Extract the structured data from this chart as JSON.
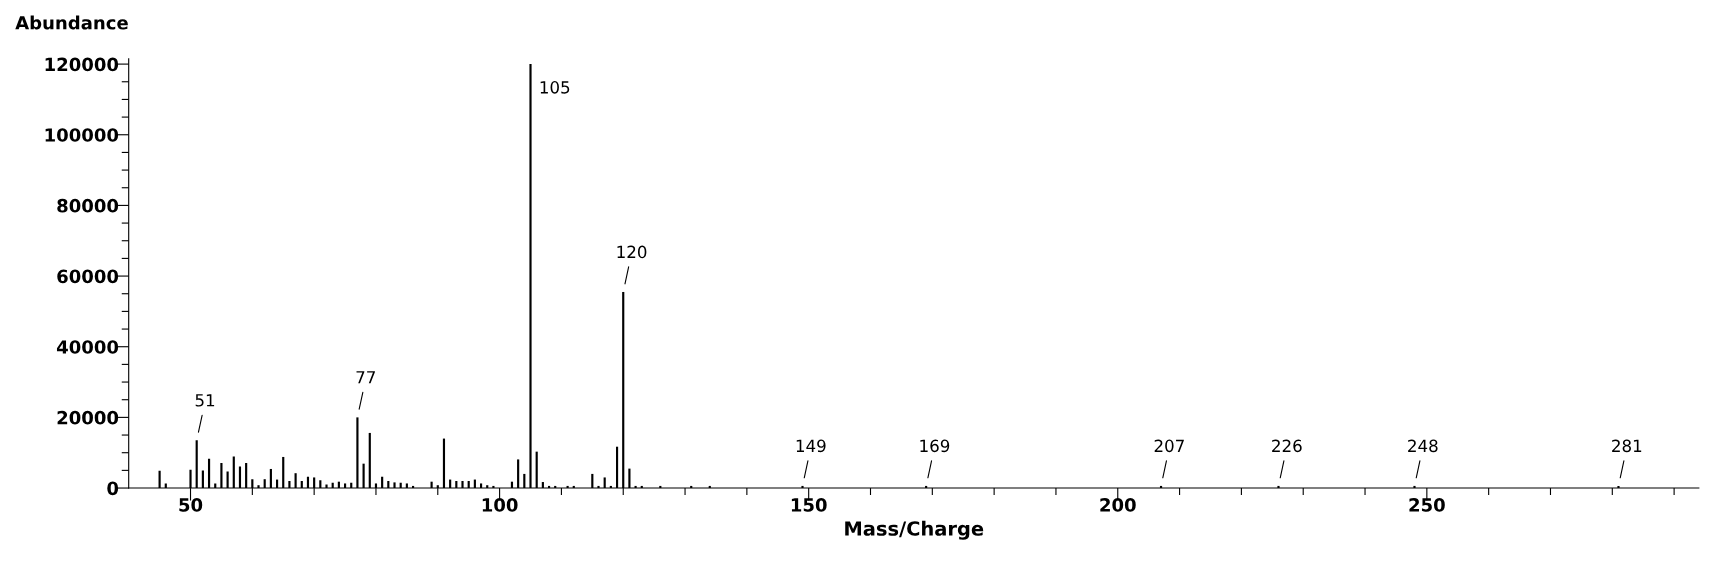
{
  "chart_data": {
    "type": "bar",
    "xlabel": "Mass/Charge",
    "ylabel": "Abundance",
    "x": [
      45,
      46,
      50,
      51,
      52,
      53,
      54,
      55,
      56,
      57,
      58,
      59,
      60,
      61,
      62,
      63,
      64,
      65,
      66,
      67,
      68,
      69,
      70,
      71,
      72,
      73,
      74,
      75,
      76,
      77,
      78,
      79,
      80,
      81,
      82,
      83,
      84,
      85,
      86,
      89,
      90,
      91,
      92,
      93,
      94,
      95,
      96,
      97,
      98,
      99,
      102,
      103,
      104,
      105,
      106,
      107,
      108,
      109,
      111,
      112,
      115,
      116,
      117,
      118,
      119,
      120,
      121,
      122,
      123,
      126,
      131,
      134,
      149,
      169,
      207,
      226,
      248,
      281
    ],
    "values": [
      4900,
      1300,
      5200,
      13500,
      5000,
      8300,
      1300,
      7100,
      4700,
      8900,
      6100,
      7100,
      2500,
      800,
      2500,
      5400,
      2400,
      8800,
      2000,
      4200,
      2000,
      3200,
      3000,
      2200,
      1000,
      1500,
      1800,
      1300,
      1500,
      20000,
      6900,
      15600,
      1300,
      3200,
      2000,
      1600,
      1500,
      1300,
      600,
      1800,
      800,
      14000,
      2400,
      2000,
      2000,
      2000,
      2400,
      1300,
      800,
      600,
      1800,
      8100,
      4000,
      120000,
      10300,
      1700,
      600,
      600,
      600,
      600,
      4000,
      600,
      3000,
      600,
      11700,
      55500,
      5500,
      600,
      600,
      600,
      600,
      600,
      600,
      600,
      600,
      600,
      600,
      600
    ],
    "color": "#000000",
    "xlim": [
      40,
      294
    ],
    "xticks": [
      50,
      {
        "value": 60,
        "label": null
      },
      {
        "value": 70,
        "label": null
      },
      {
        "value": 80,
        "label": null
      },
      {
        "value": 90,
        "label": null
      },
      100,
      {
        "value": 110,
        "label": null
      },
      {
        "value": 120,
        "label": null
      },
      {
        "value": 130,
        "label": null
      },
      {
        "value": 140,
        "label": null
      },
      150,
      {
        "value": 160,
        "label": null
      },
      {
        "value": 170,
        "label": null
      },
      {
        "value": 180,
        "label": null
      },
      {
        "value": 190,
        "label": null
      },
      200,
      {
        "value": 210,
        "label": null
      },
      {
        "value": 220,
        "label": null
      },
      {
        "value": 230,
        "label": null
      },
      {
        "value": 240,
        "label": null
      },
      250,
      {
        "value": 260,
        "label": null
      },
      {
        "value": 270,
        "label": null
      },
      {
        "value": 280,
        "label": null
      },
      {
        "value": 290,
        "label": null
      }
    ],
    "ylim": [
      0,
      121500
    ],
    "yticks": [
      0,
      {
        "value": 5000,
        "label": null
      },
      {
        "value": 10000,
        "label": null
      },
      {
        "value": 15000,
        "label": null
      },
      20000,
      {
        "value": 25000,
        "label": null
      },
      {
        "value": 30000,
        "label": null
      },
      {
        "value": 35000,
        "label": null
      },
      40000,
      {
        "value": 45000,
        "label": null
      },
      {
        "value": 50000,
        "label": null
      },
      {
        "value": 55000,
        "label": null
      },
      60000,
      {
        "value": 65000,
        "label": null
      },
      {
        "value": 70000,
        "label": null
      },
      {
        "value": 75000,
        "label": null
      },
      80000,
      {
        "value": 85000,
        "label": null
      },
      {
        "value": 90000,
        "label": null
      },
      {
        "value": 95000,
        "label": null
      },
      100000,
      {
        "value": 105000,
        "label": null
      },
      {
        "value": 110000,
        "label": null
      },
      {
        "value": 115000,
        "label": null
      },
      120000
    ],
    "grid": false,
    "annotations": [
      {
        "text": "51",
        "x": 51,
        "y": 13500
      },
      {
        "text": "77",
        "x": 77,
        "y": 20000
      },
      {
        "text": "105",
        "x": 105,
        "y": 120000
      },
      {
        "text": "120",
        "x": 120,
        "y": 55500
      },
      {
        "text": "149",
        "x": 149,
        "y": 600
      },
      {
        "text": "169",
        "x": 169,
        "y": 600
      },
      {
        "text": "207",
        "x": 207,
        "y": 600
      },
      {
        "text": "226",
        "x": 226,
        "y": 600
      },
      {
        "text": "248",
        "x": 248,
        "y": 600
      },
      {
        "text": "281",
        "x": 281,
        "y": 600
      }
    ]
  }
}
